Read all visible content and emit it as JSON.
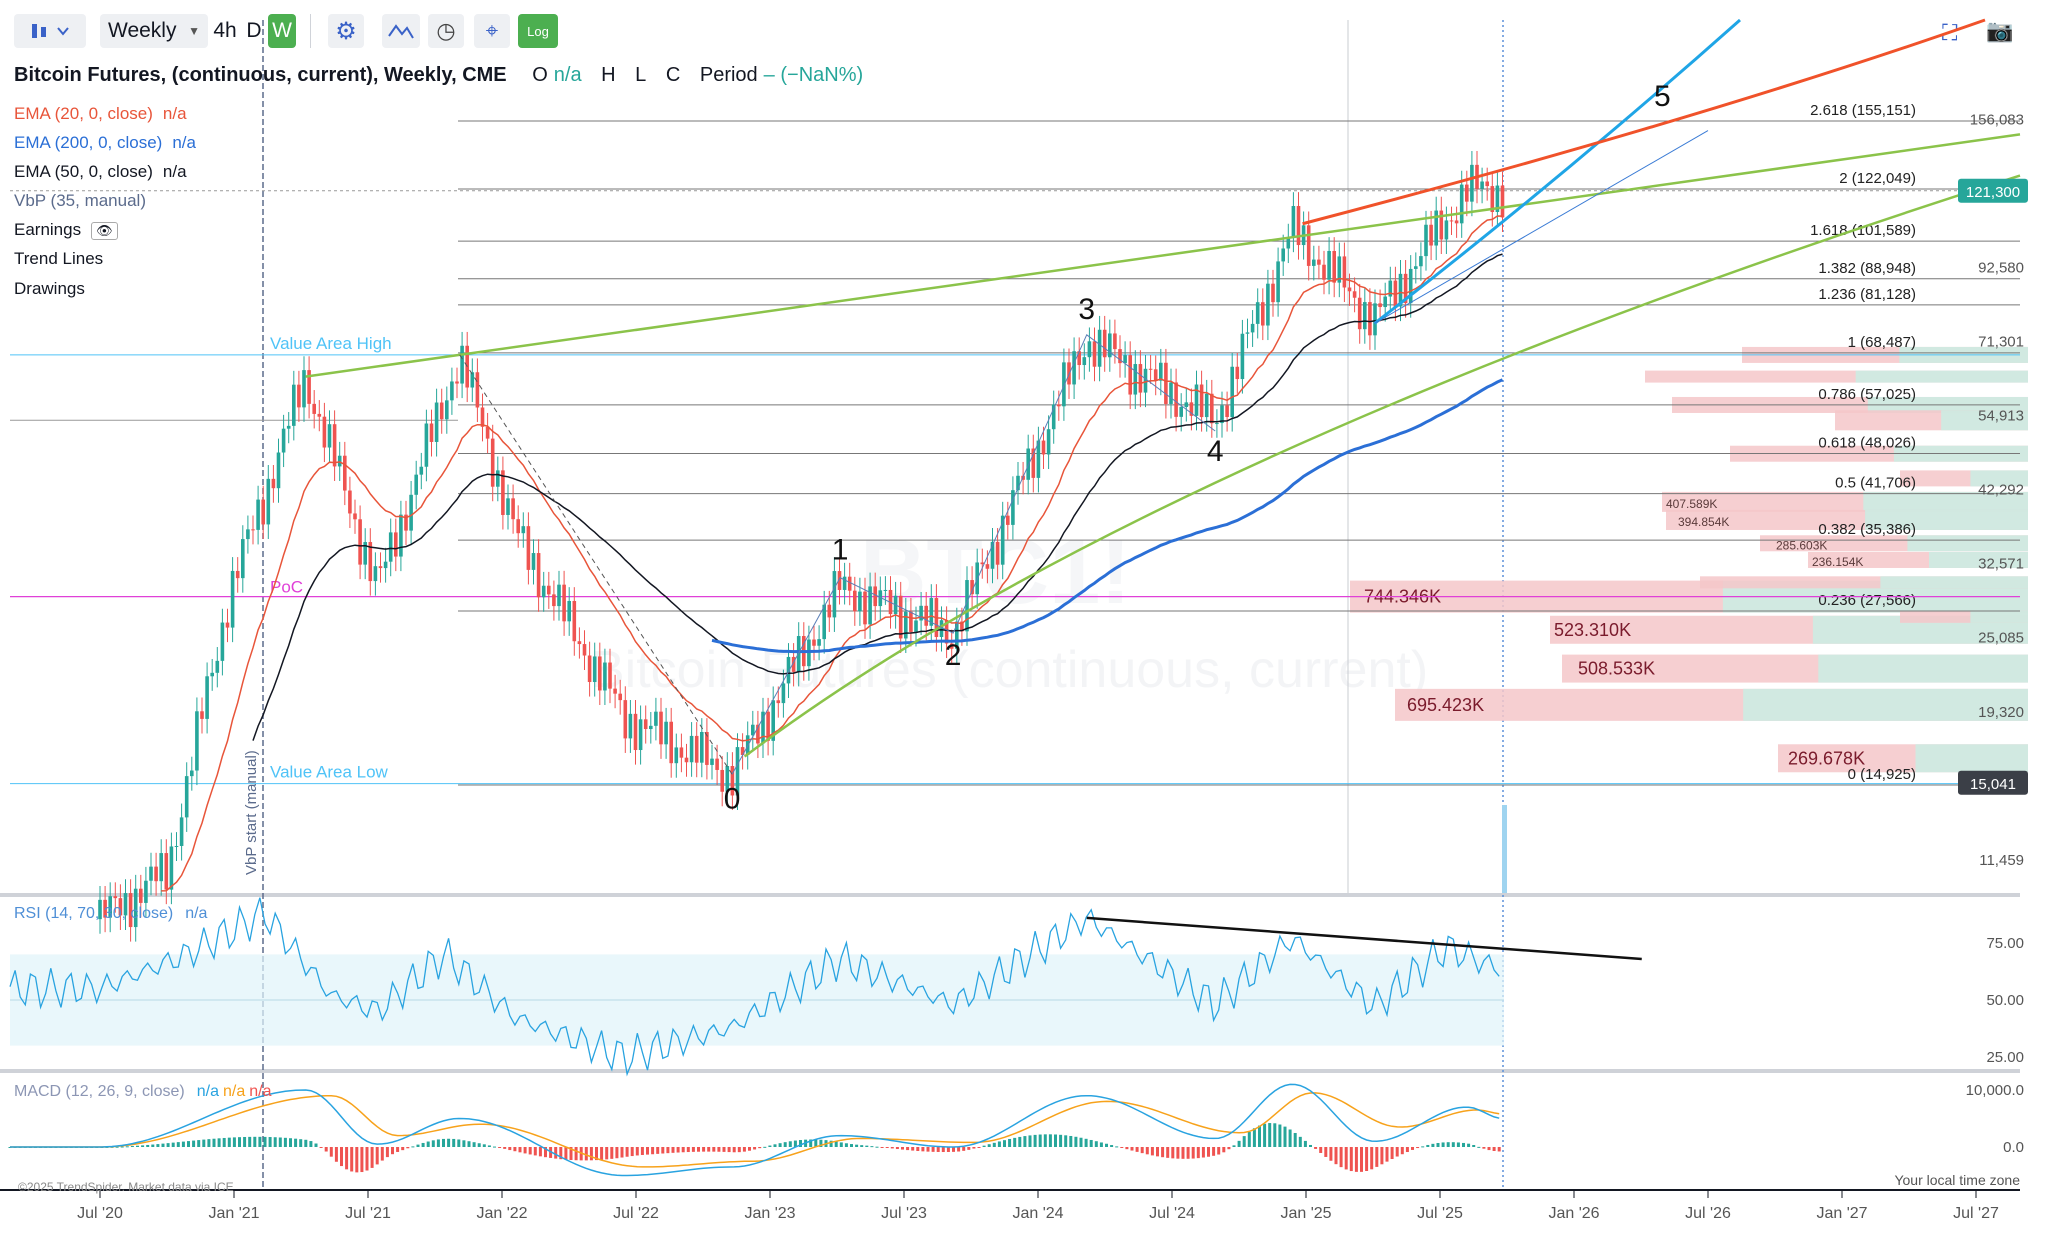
{
  "toolbar": {
    "interval": "Weekly",
    "tf_4h": "4h",
    "tf_d": "D",
    "tf_w": "W",
    "log_label": "Log",
    "icons": [
      "candles-icon",
      "chevron-down-icon",
      "gear-icon",
      "indicator-icon",
      "clock-icon",
      "crosshair-icon",
      "log-icon",
      "fullscreen-icon",
      "camera-icon"
    ]
  },
  "header": {
    "title": "Bitcoin Futures, (continuous, current), Weekly, CME",
    "o_label": "O",
    "o_val": "n/a",
    "h_label": "H",
    "l_label": "L",
    "c_label": "C",
    "period_label": "Period",
    "period_val": "– (−NaN%)"
  },
  "legend": [
    {
      "text": "EMA (20, 0, close)",
      "val": "n/a",
      "color": "#e8553a"
    },
    {
      "text": "EMA (200, 0, close)",
      "val": "n/a",
      "color": "#2b6fd6"
    },
    {
      "text": "EMA (50, 0, close)",
      "val": "n/a",
      "color": "#131722"
    },
    {
      "text": "VbP (35, manual)",
      "val": "",
      "color": "#5b6b8c"
    },
    {
      "text": "Earnings",
      "val": "",
      "color": "#131722"
    },
    {
      "text": "Trend Lines",
      "val": "",
      "color": "#131722"
    },
    {
      "text": "Drawings",
      "val": "",
      "color": "#131722"
    }
  ],
  "watermark": {
    "symbol": "BTC1!",
    "name": "Bitcoin Futures (continuous, current)"
  },
  "colors": {
    "ema20": "#e8553a",
    "ema200": "#2b6fd6",
    "ema50": "#131722",
    "up": "#26a69a",
    "down": "#ef5350",
    "channel": "#8bc34a",
    "blueCurve": "#1fa5e6",
    "redCurve": "#f0522a",
    "vbpDown": "#f4c7c9",
    "vbpUp": "#cdebe2",
    "rsi": "#29a3e0",
    "macd": "#29a3e0",
    "signal": "#f7a21b",
    "poc": "#e040d8",
    "valueArea": "#4fc3f7"
  },
  "chart_data": [
    {
      "type": "candlestick",
      "title": "Bitcoin Futures, (continuous, current), Weekly, CME",
      "y_scale": "log",
      "y_axis_ticks": [
        "156,083",
        "92,580",
        "71,301",
        "54,913",
        "42,292",
        "32,571",
        "25,085",
        "19,320",
        "11,459"
      ],
      "x_axis_ticks": [
        "Jul '20",
        "Jan '21",
        "Jul '21",
        "Jan '22",
        "Jul '22",
        "Jan '23",
        "Jul '23",
        "Jan '24",
        "Jul '24",
        "Jan '25",
        "Jul '25",
        "Jan '26",
        "Jul '26",
        "Jan '27",
        "Jul '27"
      ],
      "price_tags": [
        {
          "value": "121,300",
          "color": "#26a69a"
        },
        {
          "value": "15,041",
          "color": "#3b3f47"
        }
      ],
      "fib_levels": [
        {
          "label": "2.618 (155,151)",
          "price": 155151
        },
        {
          "label": "2 (122,049)",
          "price": 122049
        },
        {
          "label": "1.618 (101,589)",
          "price": 101589
        },
        {
          "label": "1.382 (88,948)",
          "price": 88948
        },
        {
          "label": "1.236 (81,128)",
          "price": 81128
        },
        {
          "label": "1 (68,487)",
          "price": 68487
        },
        {
          "label": "0.786 (57,025)",
          "price": 57025
        },
        {
          "label": "0.618 (48,026)",
          "price": 48026
        },
        {
          "label": "0.5 (41,706)",
          "price": 41706
        },
        {
          "label": "0.382 (35,386)",
          "price": 35386
        },
        {
          "label": "0.236 (27,566)",
          "price": 27566
        },
        {
          "label": "0 (14,925)",
          "price": 14925
        }
      ],
      "wave_labels": [
        {
          "label": "0",
          "date": "2022-11-14",
          "price": 15500
        },
        {
          "label": "1",
          "date": "2023-04-10",
          "price": 31000
        },
        {
          "label": "2",
          "date": "2023-09-11",
          "price": 25500
        },
        {
          "label": "3",
          "date": "2024-03-11",
          "price": 73000
        },
        {
          "label": "4",
          "date": "2024-09-02",
          "price": 52000
        },
        {
          "label": "5",
          "date": "2026-05-04",
          "price": 158000
        }
      ],
      "value_area": {
        "high_label": "Value Area High",
        "high": 68000,
        "low_label": "Value Area Low",
        "low": 15000,
        "poc_label": "PoC",
        "poc": 29000
      },
      "vbp_start_label": "VbP start (manual)",
      "vbp_labels": [
        {
          "text": "744.346K",
          "price": 29000
        },
        {
          "text": "523.310K",
          "price": 25800
        },
        {
          "text": "508.533K",
          "price": 22500
        },
        {
          "text": "695.423K",
          "price": 19800
        },
        {
          "text": "269.678K",
          "price": 16400
        },
        {
          "text": "407.589K",
          "price": 40500
        },
        {
          "text": "394.854K",
          "price": 38000
        },
        {
          "text": "285.603K",
          "price": 35000
        },
        {
          "text": "236.154K",
          "price": 33000
        }
      ],
      "closes_approx": [
        {
          "date": "2020-07-06",
          "price": 9300
        },
        {
          "date": "2020-10-05",
          "price": 11000
        },
        {
          "date": "2020-12-28",
          "price": 29000
        },
        {
          "date": "2021-04-12",
          "price": 63000
        },
        {
          "date": "2021-07-19",
          "price": 30000
        },
        {
          "date": "2021-11-08",
          "price": 68000
        },
        {
          "date": "2022-01-24",
          "price": 36000
        },
        {
          "date": "2022-06-20",
          "price": 19000
        },
        {
          "date": "2022-11-14",
          "price": 15500
        },
        {
          "date": "2023-04-10",
          "price": 30000
        },
        {
          "date": "2023-09-11",
          "price": 25500
        },
        {
          "date": "2024-03-11",
          "price": 72000
        },
        {
          "date": "2024-09-02",
          "price": 54000
        },
        {
          "date": "2024-12-16",
          "price": 106000
        },
        {
          "date": "2025-04-07",
          "price": 77000
        },
        {
          "date": "2025-08-11",
          "price": 122000
        },
        {
          "date": "2025-09-29",
          "price": 121300
        }
      ]
    },
    {
      "type": "line",
      "title": "RSI (14, 70, 30, close)",
      "value_label": "n/a",
      "y_axis_ticks": [
        "75.00",
        "50.00",
        "25.00"
      ],
      "series": [
        {
          "name": "RSI (14, 70, 30, close)",
          "points": [
            {
              "date": "2020-07-06",
              "value": 55
            },
            {
              "date": "2020-11-02",
              "value": 70
            },
            {
              "date": "2021-02-15",
              "value": 88
            },
            {
              "date": "2021-05-17",
              "value": 52
            },
            {
              "date": "2021-07-19",
              "value": 45
            },
            {
              "date": "2021-10-18",
              "value": 70
            },
            {
              "date": "2022-01-24",
              "value": 42
            },
            {
              "date": "2022-06-20",
              "value": 25
            },
            {
              "date": "2022-11-14",
              "value": 38
            },
            {
              "date": "2023-04-10",
              "value": 68
            },
            {
              "date": "2023-09-11",
              "value": 48
            },
            {
              "date": "2024-03-11",
              "value": 86
            },
            {
              "date": "2024-09-02",
              "value": 48
            },
            {
              "date": "2024-12-16",
              "value": 77
            },
            {
              "date": "2025-04-07",
              "value": 47
            },
            {
              "date": "2025-07-14",
              "value": 73
            },
            {
              "date": "2025-09-29",
              "value": 63
            }
          ]
        }
      ],
      "trend_line": {
        "from": {
          "date": "2024-03-11",
          "value": 86
        },
        "to": {
          "date": "2026-04-06",
          "value": 68
        }
      }
    },
    {
      "type": "line",
      "title": "MACD (12, 26, 9, close)",
      "value_labels": [
        "n/a",
        "n/a",
        "n/a"
      ],
      "y_axis_ticks": [
        "10,000.0",
        "0.0"
      ],
      "series": [
        {
          "name": "MACD",
          "points": [
            {
              "date": "2020-07-06",
              "value": 0
            },
            {
              "date": "2021-04-12",
              "value": 10000
            },
            {
              "date": "2021-07-19",
              "value": 500
            },
            {
              "date": "2021-11-08",
              "value": 5000
            },
            {
              "date": "2022-06-20",
              "value": -5000
            },
            {
              "date": "2022-11-14",
              "value": -3500
            },
            {
              "date": "2023-04-10",
              "value": 2000
            },
            {
              "date": "2023-09-11",
              "value": 0
            },
            {
              "date": "2024-03-11",
              "value": 9000
            },
            {
              "date": "2024-09-02",
              "value": 1500
            },
            {
              "date": "2024-12-16",
              "value": 11000
            },
            {
              "date": "2025-04-07",
              "value": 1000
            },
            {
              "date": "2025-08-11",
              "value": 7000
            },
            {
              "date": "2025-09-29",
              "value": 5000
            }
          ]
        },
        {
          "name": "Signal",
          "points": [
            {
              "date": "2020-07-06",
              "value": 0
            },
            {
              "date": "2021-05-17",
              "value": 9000
            },
            {
              "date": "2021-08-16",
              "value": 2000
            },
            {
              "date": "2021-12-06",
              "value": 4000
            },
            {
              "date": "2022-07-18",
              "value": -3500
            },
            {
              "date": "2022-12-12",
              "value": -2500
            },
            {
              "date": "2023-05-08",
              "value": 1500
            },
            {
              "date": "2023-10-09",
              "value": 800
            },
            {
              "date": "2024-04-08",
              "value": 8000
            },
            {
              "date": "2024-10-07",
              "value": 2500
            },
            {
              "date": "2025-01-13",
              "value": 9500
            },
            {
              "date": "2025-05-12",
              "value": 3500
            },
            {
              "date": "2025-08-25",
              "value": 6500
            },
            {
              "date": "2025-09-29",
              "value": 5800
            }
          ]
        }
      ]
    }
  ],
  "footer": {
    "copyright": "©2025 TrendSpider. Market data via ICE",
    "timezone": "Your local time zone"
  }
}
